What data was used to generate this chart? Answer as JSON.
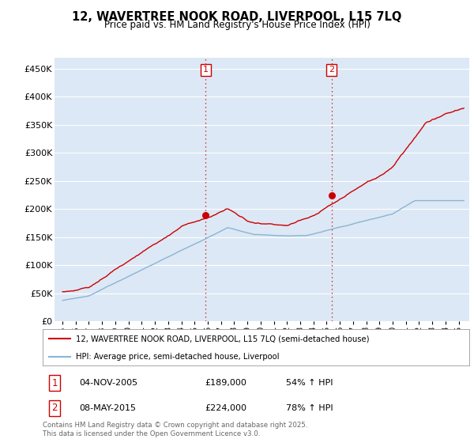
{
  "title": "12, WAVERTREE NOOK ROAD, LIVERPOOL, L15 7LQ",
  "subtitle": "Price paid vs. HM Land Registry's House Price Index (HPI)",
  "ylim": [
    0,
    470000
  ],
  "yticks": [
    0,
    50000,
    100000,
    150000,
    200000,
    250000,
    300000,
    350000,
    400000,
    450000
  ],
  "ytick_labels": [
    "£0",
    "£50K",
    "£100K",
    "£150K",
    "£200K",
    "£250K",
    "£300K",
    "£350K",
    "£400K",
    "£450K"
  ],
  "hpi_color": "#8ab4d4",
  "price_color": "#cc0000",
  "vline_color": "#cc0000",
  "sale1_date": "04-NOV-2005",
  "sale1_price": 189000,
  "sale1_pct": "54%",
  "sale1_x": 2005.85,
  "sale2_date": "08-MAY-2015",
  "sale2_price": 224000,
  "sale2_pct": "78%",
  "sale2_x": 2015.37,
  "legend_label1": "12, WAVERTREE NOOK ROAD, LIVERPOOL, L15 7LQ (semi-detached house)",
  "legend_label2": "HPI: Average price, semi-detached house, Liverpool",
  "footer": "Contains HM Land Registry data © Crown copyright and database right 2025.\nThis data is licensed under the Open Government Licence v3.0.",
  "background_color": "#ffffff",
  "plot_bg_color": "#dce8f5"
}
